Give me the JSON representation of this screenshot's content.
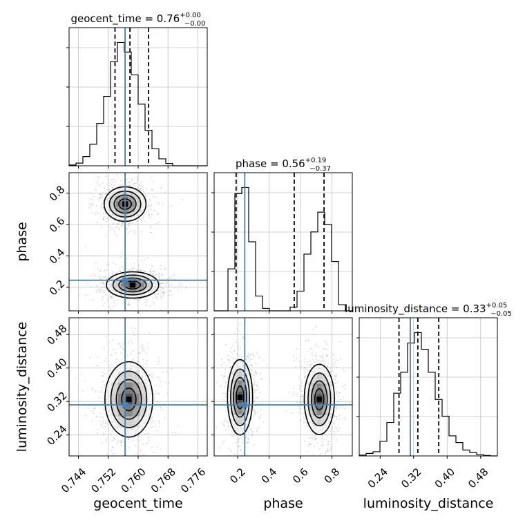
{
  "titles": {
    "geocent_time": {
      "prefix": "geocent_time = 0.76",
      "sup": "+0.00",
      "sub": "−0.00"
    },
    "phase": {
      "prefix": "phase = 0.56",
      "sup": "+0.19",
      "sub": "−0.37"
    },
    "luminosity_distance": {
      "prefix": "luminosity_distance = 0.33",
      "sup": "+0.05",
      "sub": "−0.05"
    }
  },
  "colors": {
    "truth": "#4682b4",
    "hist": "#000000",
    "grid": "#c0c0c0",
    "cell": "#808080",
    "density": "#000000"
  },
  "chart_data": {
    "type": "corner",
    "parameters": [
      "geocent_time",
      "phase",
      "luminosity_distance"
    ],
    "xlabels": [
      "geocent_time",
      "phase",
      "luminosity_distance"
    ],
    "ylabels": [
      "",
      "phase",
      "luminosity_distance"
    ],
    "ranges": {
      "geocent_time": [
        0.7415,
        0.7785
      ],
      "phase": [
        0.05,
        0.93
      ],
      "luminosity_distance": [
        0.19,
        0.52
      ]
    },
    "ticks": {
      "geocent_time": [
        0.744,
        0.752,
        0.76,
        0.768,
        0.776
      ],
      "phase": [
        0.2,
        0.4,
        0.6,
        0.8
      ],
      "luminosity_distance": [
        0.24,
        0.32,
        0.4,
        0.48
      ]
    },
    "tick_labels": {
      "geocent_time": [
        "0.744",
        "0.752",
        "0.760",
        "0.768",
        "0.776"
      ],
      "phase": [
        "0.2",
        "0.4",
        "0.6",
        "0.8"
      ],
      "luminosity_distance": [
        "0.24",
        "0.32",
        "0.40",
        "0.48"
      ]
    },
    "truths": {
      "geocent_time": 0.7565,
      "phase": 0.245,
      "luminosity_distance": 0.312
    },
    "quantiles": {
      "geocent_time": [
        0.7538,
        0.7578,
        0.7628
      ],
      "phase": [
        0.19,
        0.56,
        0.75
      ],
      "luminosity_distance": [
        0.285,
        0.33,
        0.38
      ]
    },
    "histograms": {
      "geocent_time": {
        "edges": [
          0.7415,
          0.74335,
          0.7452,
          0.74705,
          0.7489,
          0.75075,
          0.7526,
          0.75445,
          0.7563,
          0.75815,
          0.76,
          0.76185,
          0.7637,
          0.76555,
          0.7674,
          0.76925,
          0.7711,
          0.77295,
          0.7748,
          0.77665,
          0.7785
        ],
        "counts": [
          2,
          7,
          24,
          56,
          110,
          180,
          270,
          320,
          295,
          236,
          160,
          92,
          44,
          18,
          6,
          0,
          0,
          0,
          0,
          0
        ]
      },
      "phase": {
        "edges": [
          0.05,
          0.094,
          0.138,
          0.182,
          0.226,
          0.27,
          0.314,
          0.358,
          0.402,
          0.446,
          0.49,
          0.534,
          0.578,
          0.622,
          0.666,
          0.71,
          0.754,
          0.798,
          0.842,
          0.886,
          0.93
        ],
        "counts": [
          0,
          0,
          34,
          95,
          100,
          56,
          12,
          2,
          0,
          0,
          0,
          3,
          16,
          46,
          64,
          80,
          70,
          40,
          5,
          0
        ]
      },
      "luminosity_distance": {
        "edges": [
          0.19,
          0.2065,
          0.223,
          0.2395,
          0.256,
          0.2725,
          0.289,
          0.3055,
          0.322,
          0.3385,
          0.355,
          0.3715,
          0.388,
          0.4045,
          0.421,
          0.4375,
          0.454,
          0.4705,
          0.487,
          0.5035,
          0.52
        ],
        "counts": [
          2,
          6,
          10,
          35,
          80,
          150,
          200,
          270,
          295,
          255,
          200,
          135,
          95,
          48,
          32,
          14,
          8,
          3,
          1,
          0
        ]
      }
    },
    "density_blobs": {
      "phase_vs_geocent_time": [
        {
          "cx": 0.7565,
          "cy": 0.73,
          "sx": 0.0028,
          "sy": 0.055
        },
        {
          "cx": 0.7585,
          "cy": 0.215,
          "sx": 0.0035,
          "sy": 0.042
        }
      ],
      "luminosity_distance_vs_geocent_time": [
        {
          "cx": 0.7575,
          "cy": 0.325,
          "sx": 0.0032,
          "sy": 0.045
        }
      ],
      "luminosity_distance_vs_phase": [
        {
          "cx": 0.215,
          "cy": 0.33,
          "sx": 0.04,
          "sy": 0.045
        },
        {
          "cx": 0.72,
          "cy": 0.325,
          "sx": 0.048,
          "sy": 0.042
        }
      ]
    }
  }
}
